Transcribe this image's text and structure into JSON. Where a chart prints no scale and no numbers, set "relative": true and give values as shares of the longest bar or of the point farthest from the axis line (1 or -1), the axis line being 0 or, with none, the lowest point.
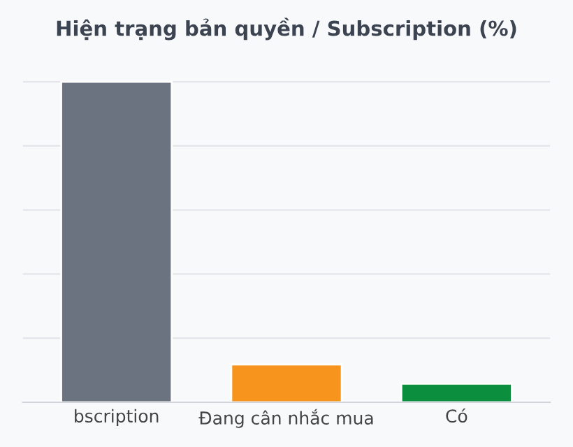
{
  "chart_data": {
    "type": "bar",
    "title": "Hiện trạng bản quyền / Subscription (%)",
    "categories": [
      "bscription",
      "Đang cân nhắc mua",
      "Có"
    ],
    "relative": true,
    "series": [
      {
        "values": [
          1,
          0.118,
          0.058
        ],
        "colors": [
          "#6b7280",
          "#f7941d",
          "#0b8f3f"
        ]
      }
    ],
    "grid": "y",
    "tick_labels": "x"
  }
}
